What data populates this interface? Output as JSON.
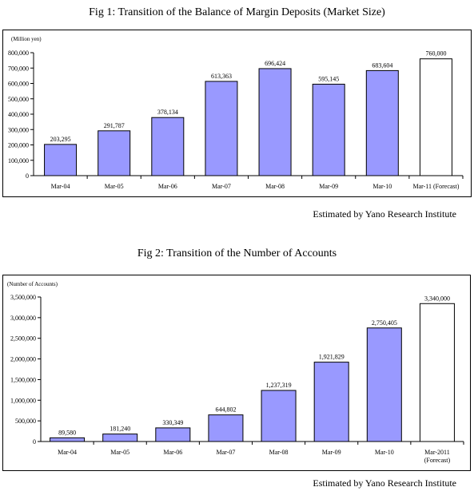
{
  "figures": [
    {
      "title": "Fig 1: Transition of the Balance of Margin Deposits (Market Size)",
      "source": "Estimated by Yano Research Institute"
    },
    {
      "title": "Fig 2: Transition of the Number of Accounts",
      "source": "Estimated by Yano Research Institute"
    }
  ],
  "chart_data": [
    {
      "type": "bar",
      "title": "Fig 1: Transition of the Balance of Margin Deposits (Market Size)",
      "unit_label": "(Million yen)",
      "categories": [
        "Mar-04",
        "Mar-05",
        "Mar-06",
        "Mar-07",
        "Mar-08",
        "Mar-09",
        "Mar-10",
        "Mar-11 (Forecast)"
      ],
      "values": [
        203295,
        291787,
        378134,
        613363,
        696424,
        595145,
        683604,
        760000
      ],
      "value_labels": [
        "203,295",
        "291,787",
        "378,134",
        "613,363",
        "696,424",
        "595,145",
        "683,604",
        "760,000"
      ],
      "forecast_index": 7,
      "ylim": [
        0,
        800000
      ],
      "yticks": [
        0,
        100000,
        200000,
        300000,
        400000,
        500000,
        600000,
        700000,
        800000
      ],
      "ytick_labels": [
        "0",
        "100,000",
        "200,000",
        "300,000",
        "400,000",
        "500,000",
        "600,000",
        "700,000",
        "800,000"
      ],
      "colors": {
        "bar": "#9999ff",
        "forecast": "#ffffff",
        "outline": "#000000"
      },
      "grid": false,
      "legend": "none"
    },
    {
      "type": "bar",
      "title": "Fig 2: Transition of the Number of Accounts",
      "unit_label": "(Number of Accounts)",
      "categories": [
        "Mar-04",
        "Mar-05",
        "Mar-06",
        "Mar-07",
        "Mar-08",
        "Mar-09",
        "Mar-10",
        "Mar-2011\n(Forecast)"
      ],
      "values": [
        89580,
        181240,
        330349,
        644802,
        1237319,
        1921829,
        2750405,
        3340000
      ],
      "value_labels": [
        "89,580",
        "181,240",
        "330,349",
        "644,802",
        "1,237,319",
        "1,921,829",
        "2,750,405",
        "3,340,000"
      ],
      "forecast_index": 7,
      "ylim": [
        0,
        3500000
      ],
      "yticks": [
        0,
        500000,
        1000000,
        1500000,
        2000000,
        2500000,
        3000000,
        3500000
      ],
      "ytick_labels": [
        "0",
        "500,000",
        "1,000,000",
        "1,500,000",
        "2,000,000",
        "2,500,000",
        "3,000,000",
        "3,500,000"
      ],
      "colors": {
        "bar": "#9999ff",
        "forecast": "#ffffff",
        "outline": "#000000"
      },
      "grid": false,
      "legend": "none"
    }
  ]
}
